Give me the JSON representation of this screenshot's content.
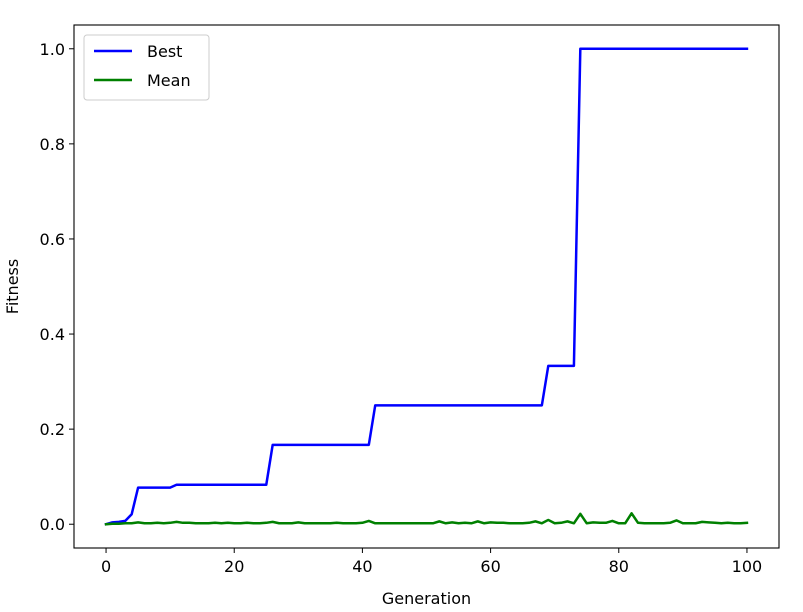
{
  "chart_data": {
    "type": "line",
    "title": "",
    "xlabel": "Generation",
    "ylabel": "Fitness",
    "xlim": [
      -5,
      105
    ],
    "ylim": [
      -0.05,
      1.05
    ],
    "xticks": [
      0,
      20,
      40,
      60,
      80,
      100
    ],
    "xtick_labels": [
      "0",
      "20",
      "40",
      "60",
      "80",
      "100"
    ],
    "yticks": [
      0.0,
      0.2,
      0.4,
      0.6,
      0.8,
      1.0
    ],
    "ytick_labels": [
      "0.0",
      "0.2",
      "0.4",
      "0.6",
      "0.8",
      "1.0"
    ],
    "grid": false,
    "legend_position": "top-left",
    "series": [
      {
        "name": "Best",
        "color": "#0000ff",
        "x": [
          0,
          1,
          2,
          3,
          4,
          5,
          6,
          7,
          8,
          9,
          10,
          11,
          25,
          26,
          41,
          42,
          68,
          69,
          73,
          74,
          100
        ],
        "y": [
          0.0,
          0.004,
          0.005,
          0.007,
          0.021,
          0.077,
          0.077,
          0.077,
          0.077,
          0.077,
          0.077,
          0.083,
          0.083,
          0.167,
          0.167,
          0.25,
          0.25,
          0.333,
          0.333,
          1.0,
          1.0
        ]
      },
      {
        "name": "Mean",
        "color": "#008000",
        "x": [
          0,
          1,
          2,
          3,
          4,
          5,
          6,
          7,
          8,
          9,
          10,
          11,
          12,
          13,
          14,
          15,
          16,
          17,
          18,
          19,
          20,
          21,
          22,
          23,
          24,
          25,
          26,
          27,
          28,
          29,
          30,
          31,
          32,
          33,
          34,
          35,
          36,
          37,
          38,
          39,
          40,
          41,
          42,
          43,
          44,
          45,
          46,
          47,
          48,
          49,
          50,
          51,
          52,
          53,
          54,
          55,
          56,
          57,
          58,
          59,
          60,
          61,
          62,
          63,
          64,
          65,
          66,
          67,
          68,
          69,
          70,
          71,
          72,
          73,
          74,
          75,
          76,
          77,
          78,
          79,
          80,
          81,
          82,
          83,
          84,
          85,
          86,
          87,
          88,
          89,
          90,
          91,
          92,
          93,
          94,
          95,
          96,
          97,
          98,
          99,
          100
        ],
        "y": [
          0.0,
          0.001,
          0.001,
          0.002,
          0.002,
          0.004,
          0.002,
          0.002,
          0.003,
          0.002,
          0.003,
          0.005,
          0.003,
          0.003,
          0.002,
          0.002,
          0.002,
          0.003,
          0.002,
          0.003,
          0.002,
          0.002,
          0.003,
          0.002,
          0.002,
          0.003,
          0.005,
          0.002,
          0.002,
          0.002,
          0.004,
          0.002,
          0.002,
          0.002,
          0.002,
          0.002,
          0.003,
          0.002,
          0.002,
          0.002,
          0.003,
          0.007,
          0.002,
          0.002,
          0.002,
          0.002,
          0.002,
          0.002,
          0.002,
          0.002,
          0.002,
          0.002,
          0.006,
          0.002,
          0.004,
          0.002,
          0.003,
          0.002,
          0.006,
          0.002,
          0.004,
          0.003,
          0.003,
          0.002,
          0.002,
          0.002,
          0.003,
          0.006,
          0.002,
          0.009,
          0.002,
          0.003,
          0.006,
          0.002,
          0.022,
          0.002,
          0.004,
          0.003,
          0.003,
          0.007,
          0.002,
          0.002,
          0.023,
          0.003,
          0.002,
          0.002,
          0.002,
          0.002,
          0.003,
          0.008,
          0.002,
          0.002,
          0.002,
          0.005,
          0.004,
          0.003,
          0.002,
          0.003,
          0.002,
          0.002,
          0.003
        ]
      }
    ]
  }
}
